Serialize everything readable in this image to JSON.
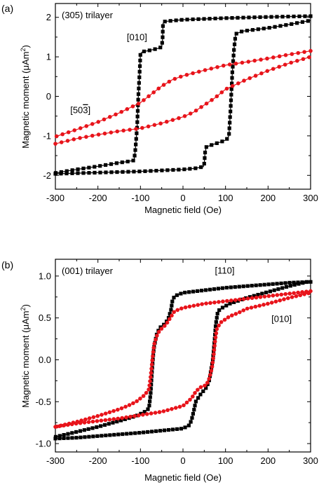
{
  "colors": {
    "black_series": "#000000",
    "red_series": "#e8141b",
    "axes": "#000000"
  },
  "chart_data": [
    {
      "type": "line",
      "panel_label": "(a)",
      "sample_label": "(305) trilayer",
      "xlabel": "Magnetic field (Oe)",
      "ylabel": "Magnetic moment (μAm²)",
      "ylabel_main": "Magnetic moment (μAm",
      "ylabel_sup": "2",
      "ylabel_close": ")",
      "xlim": [
        -300,
        300
      ],
      "ylim": [
        -2.35,
        2.35
      ],
      "xticks": [
        -300,
        -200,
        -100,
        0,
        100,
        200,
        300
      ],
      "yticks": [
        -2,
        -1,
        0,
        1,
        2
      ],
      "xtick_labels": [
        "-300",
        "-200",
        "-100",
        "0",
        "100",
        "200",
        "300"
      ],
      "ytick_labels": [
        "-2",
        "-1",
        "0",
        "1",
        "2"
      ],
      "grid": false,
      "legend": "none",
      "annotations": [
        {
          "text": "[010]",
          "x": -132,
          "y": 1.42
        },
        {
          "text": "[503]",
          "overbar_char": "3",
          "x": -265,
          "y": -0.43
        }
      ],
      "series": [
        {
          "name": "[010]",
          "color": "black",
          "marker": "square",
          "marker_step": 8,
          "branches": [
            [
              [
                300,
                2.03
              ],
              [
                200,
                2.01
              ],
              [
                100,
                1.98
              ],
              [
                0,
                1.94
              ],
              [
                -30,
                1.91
              ],
              [
                -45,
                1.89
              ],
              [
                -47,
                1.84
              ],
              [
                -48,
                1.45
              ],
              [
                -50,
                1.25
              ],
              [
                -60,
                1.21
              ],
              [
                -80,
                1.16
              ],
              [
                -95,
                1.13
              ],
              [
                -100,
                1.08
              ],
              [
                -102,
                0.6
              ],
              [
                -105,
                0.0
              ],
              [
                -108,
                -0.8
              ],
              [
                -112,
                -1.35
              ],
              [
                -115,
                -1.62
              ],
              [
                -130,
                -1.65
              ],
              [
                -150,
                -1.68
              ],
              [
                -200,
                -1.77
              ],
              [
                -250,
                -1.85
              ],
              [
                -300,
                -1.94
              ]
            ],
            [
              [
                -300,
                -1.96
              ],
              [
                -200,
                -1.93
              ],
              [
                -100,
                -1.9
              ],
              [
                0,
                -1.85
              ],
              [
                30,
                -1.82
              ],
              [
                48,
                -1.78
              ],
              [
                50,
                -1.7
              ],
              [
                52,
                -1.42
              ],
              [
                55,
                -1.28
              ],
              [
                70,
                -1.22
              ],
              [
                90,
                -1.15
              ],
              [
                102,
                -1.1
              ],
              [
                108,
                -1.0
              ],
              [
                112,
                -0.3
              ],
              [
                116,
                0.6
              ],
              [
                120,
                1.2
              ],
              [
                124,
                1.58
              ],
              [
                140,
                1.65
              ],
              [
                200,
                1.73
              ],
              [
                250,
                1.82
              ],
              [
                300,
                1.92
              ]
            ]
          ]
        },
        {
          "name": "[503]",
          "color": "red",
          "marker": "circle",
          "marker_step": 9,
          "branches": [
            [
              [
                300,
                1.15
              ],
              [
                250,
                1.06
              ],
              [
                200,
                0.96
              ],
              [
                150,
                0.87
              ],
              [
                100,
                0.79
              ],
              [
                50,
                0.66
              ],
              [
                0,
                0.52
              ],
              [
                -25,
                0.42
              ],
              [
                -50,
                0.26
              ],
              [
                -75,
                0.05
              ],
              [
                -100,
                -0.16
              ],
              [
                -150,
                -0.42
              ],
              [
                -200,
                -0.65
              ],
              [
                -250,
                -0.84
              ],
              [
                -300,
                -1.02
              ]
            ],
            [
              [
                -300,
                -1.2
              ],
              [
                -250,
                -1.07
              ],
              [
                -200,
                -0.97
              ],
              [
                -150,
                -0.88
              ],
              [
                -100,
                -0.81
              ],
              [
                -50,
                -0.68
              ],
              [
                0,
                -0.52
              ],
              [
                25,
                -0.4
              ],
              [
                50,
                -0.22
              ],
              [
                75,
                -0.04
              ],
              [
                100,
                0.18
              ],
              [
                150,
                0.43
              ],
              [
                200,
                0.65
              ],
              [
                250,
                0.84
              ],
              [
                300,
                1.0
              ]
            ]
          ]
        }
      ]
    },
    {
      "type": "line",
      "panel_label": "(b)",
      "sample_label": "(001) trilayer",
      "xlabel": "Magnetic field (Oe)",
      "ylabel": "Magnetic moment (μAm²)",
      "ylabel_main": "Magnetic moment (μAm",
      "ylabel_sup": "2",
      "ylabel_close": ")",
      "xlim": [
        -300,
        300
      ],
      "ylim": [
        -1.1,
        1.2
      ],
      "xticks": [
        -300,
        -200,
        -100,
        0,
        100,
        200,
        300
      ],
      "yticks": [
        -1.0,
        -0.5,
        0.0,
        0.5,
        1.0
      ],
      "xtick_labels": [
        "-300",
        "-200",
        "-100",
        "0",
        "100",
        "200",
        "300"
      ],
      "ytick_labels": [
        "-1.0",
        "-0.5",
        "0.0",
        "0.5",
        "1.0"
      ],
      "grid": false,
      "legend": "none",
      "annotations": [
        {
          "text": "[110]",
          "x": 75,
          "y": 1.03
        },
        {
          "text": "[010]",
          "x": 208,
          "y": 0.45
        }
      ],
      "series": [
        {
          "name": "[110]",
          "color": "black",
          "marker": "square",
          "marker_step": 6,
          "branches": [
            [
              [
                300,
                0.93
              ],
              [
                250,
                0.92
              ],
              [
                200,
                0.9
              ],
              [
                100,
                0.86
              ],
              [
                0,
                0.8
              ],
              [
                -20,
                0.76
              ],
              [
                -25,
                0.7
              ],
              [
                -28,
                0.6
              ],
              [
                -35,
                0.48
              ],
              [
                -45,
                0.42
              ],
              [
                -55,
                0.38
              ],
              [
                -62,
                0.3
              ],
              [
                -68,
                0.15
              ],
              [
                -70,
                0.05
              ],
              [
                -73,
                -0.15
              ],
              [
                -76,
                -0.4
              ],
              [
                -80,
                -0.58
              ],
              [
                -90,
                -0.62
              ],
              [
                -110,
                -0.67
              ],
              [
                -150,
                -0.73
              ],
              [
                -200,
                -0.8
              ],
              [
                -250,
                -0.86
              ],
              [
                -300,
                -0.92
              ]
            ],
            [
              [
                -300,
                -0.94
              ],
              [
                -250,
                -0.93
              ],
              [
                -200,
                -0.91
              ],
              [
                -100,
                -0.87
              ],
              [
                0,
                -0.82
              ],
              [
                15,
                -0.78
              ],
              [
                20,
                -0.72
              ],
              [
                25,
                -0.62
              ],
              [
                30,
                -0.5
              ],
              [
                40,
                -0.42
              ],
              [
                55,
                -0.33
              ],
              [
                62,
                -0.24
              ],
              [
                66,
                -0.12
              ],
              [
                70,
                0.0
              ],
              [
                74,
                0.22
              ],
              [
                77,
                0.42
              ],
              [
                82,
                0.58
              ],
              [
                92,
                0.62
              ],
              [
                110,
                0.67
              ],
              [
                150,
                0.74
              ],
              [
                200,
                0.81
              ],
              [
                250,
                0.88
              ],
              [
                300,
                0.94
              ]
            ]
          ]
        },
        {
          "name": "[010]",
          "color": "red",
          "marker": "circle",
          "marker_step": 6,
          "branches": [
            [
              [
                300,
                0.82
              ],
              [
                250,
                0.79
              ],
              [
                200,
                0.76
              ],
              [
                150,
                0.73
              ],
              [
                100,
                0.7
              ],
              [
                50,
                0.67
              ],
              [
                0,
                0.62
              ],
              [
                -20,
                0.58
              ],
              [
                -30,
                0.5
              ],
              [
                -40,
                0.42
              ],
              [
                -55,
                0.35
              ],
              [
                -62,
                0.28
              ],
              [
                -68,
                0.18
              ],
              [
                -72,
                0.0
              ],
              [
                -76,
                -0.2
              ],
              [
                -80,
                -0.35
              ],
              [
                -90,
                -0.42
              ],
              [
                -110,
                -0.5
              ],
              [
                -130,
                -0.55
              ],
              [
                -150,
                -0.59
              ],
              [
                -200,
                -0.67
              ],
              [
                -250,
                -0.74
              ],
              [
                -300,
                -0.8
              ]
            ],
            [
              [
                -300,
                -0.8
              ],
              [
                -250,
                -0.76
              ],
              [
                -200,
                -0.73
              ],
              [
                -150,
                -0.7
              ],
              [
                -100,
                -0.66
              ],
              [
                -50,
                -0.62
              ],
              [
                0,
                -0.55
              ],
              [
                20,
                -0.46
              ],
              [
                30,
                -0.38
              ],
              [
                40,
                -0.33
              ],
              [
                55,
                -0.3
              ],
              [
                62,
                -0.22
              ],
              [
                68,
                -0.1
              ],
              [
                72,
                0.05
              ],
              [
                76,
                0.25
              ],
              [
                80,
                0.38
              ],
              [
                90,
                0.45
              ],
              [
                110,
                0.52
              ],
              [
                130,
                0.56
              ],
              [
                150,
                0.61
              ],
              [
                200,
                0.67
              ],
              [
                250,
                0.74
              ],
              [
                300,
                0.8
              ]
            ]
          ]
        }
      ]
    }
  ]
}
